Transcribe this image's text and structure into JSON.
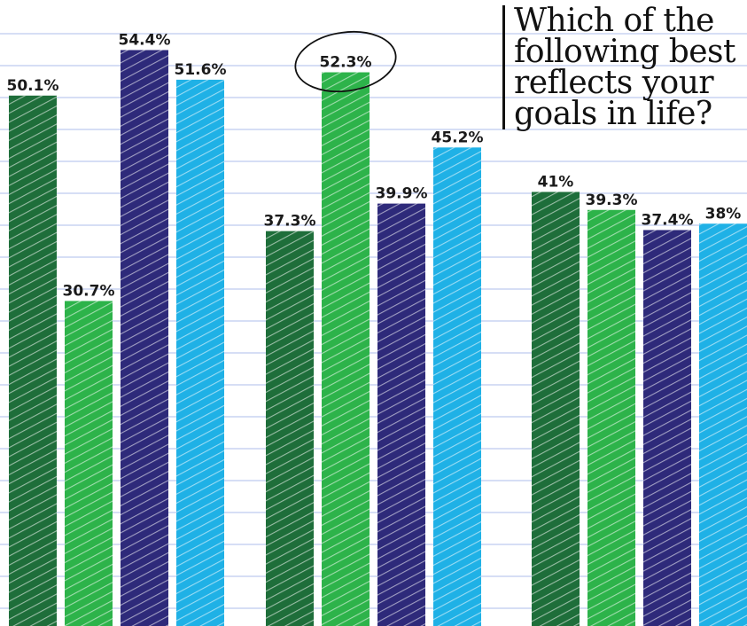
{
  "chart_data": {
    "type": "bar",
    "title": "Which of the following best reflects your goals in life?",
    "groups": [
      {
        "values": [
          50.1,
          30.7,
          54.4,
          51.6
        ],
        "labels": [
          "50.1%",
          "30.7%",
          "54.4%",
          "51.6%"
        ]
      },
      {
        "values": [
          37.3,
          52.3,
          39.9,
          45.2
        ],
        "labels": [
          "37.3%",
          "52.3%",
          "39.9%",
          "45.2%"
        ]
      },
      {
        "values": [
          41,
          39.3,
          37.4,
          38
        ],
        "labels": [
          "41%",
          "39.3%",
          "37.4%",
          "38%"
        ]
      }
    ],
    "series_colors": [
      "#1e6e3a",
      "#2db34a",
      "#2e2a7a",
      "#1fb1e6"
    ],
    "highlighted": {
      "group": 1,
      "series": 1
    },
    "grid": true,
    "gridline_color": "#c9d3f2"
  }
}
